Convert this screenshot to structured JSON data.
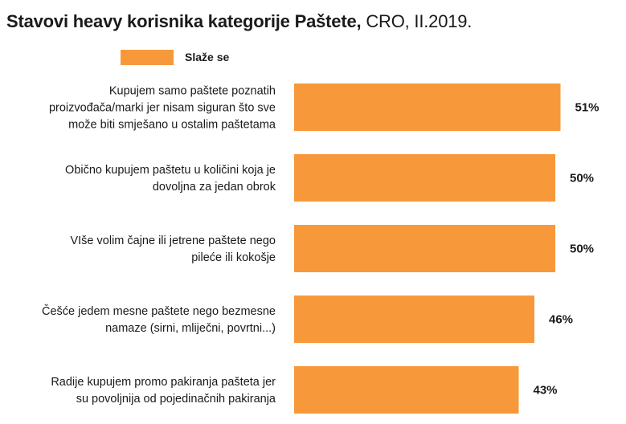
{
  "title": {
    "bold": "Stavovi heavy korisnika kategorije Paštete,",
    "light": " CRO, II.2019."
  },
  "chart_data": {
    "type": "bar",
    "orientation": "horizontal",
    "title": "Stavovi heavy korisnika kategorije Paštete, CRO, II.2019.",
    "categories": [
      [
        "Kupujem samo paštete poznatih",
        "proizvođača/marki jer nisam siguran što sve",
        "može biti smješano u ostalim paštetama"
      ],
      [
        "Obično kupujem paštetu u količini koja je",
        "dovoljna za jedan obrok"
      ],
      [
        "VIše volim čajne ili jetrene paštete nego",
        "pileće ili kokošje"
      ],
      [
        "Češće jedem mesne paštete nego bezmesne",
        "namaze (sirni, mliječni, povrtni...)"
      ],
      [
        "Radije kupujem promo pakiranja pašteta jer",
        "su povoljnija od pojedinačnih pakiranja"
      ]
    ],
    "series": [
      {
        "name": "Slaže se",
        "values": [
          51,
          50,
          50,
          46,
          43
        ],
        "color": "#f7993a"
      }
    ],
    "value_labels": [
      "51%",
      "50%",
      "50%",
      "46%",
      "43%"
    ],
    "unit": "%",
    "xlim": [
      0,
      100
    ],
    "grid": false,
    "legend": "top-left"
  }
}
